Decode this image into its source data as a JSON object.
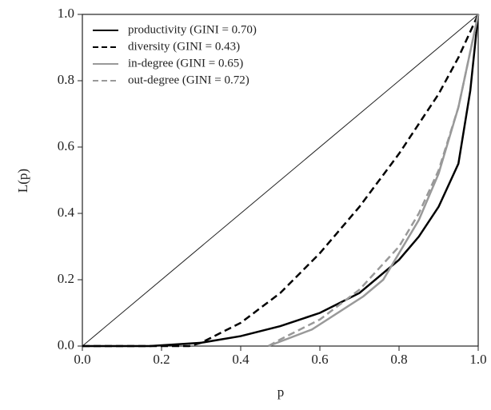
{
  "chart_data": {
    "type": "line",
    "xlabel": "p",
    "ylabel": "L(p)",
    "xlim": [
      0,
      1
    ],
    "ylim": [
      0,
      1
    ],
    "xticks": [
      {
        "value": 0,
        "label": "0.0"
      },
      0.2,
      0.4,
      0.6,
      0.8,
      {
        "value": 1,
        "label": "1.0"
      }
    ],
    "yticks": [
      {
        "value": 0,
        "label": "0.0"
      },
      0.2,
      0.4,
      0.6,
      0.8,
      {
        "value": 1,
        "label": "1.0"
      }
    ],
    "equality_line": true,
    "legend": "upper-left",
    "series": [
      {
        "name": "productivity (GINI = 0.70)",
        "color": "#000000",
        "linestyle": "solid",
        "x": [
          0,
          0.17,
          0.3,
          0.4,
          0.5,
          0.6,
          0.7,
          0.8,
          0.85,
          0.9,
          0.95,
          0.98,
          1.0
        ],
        "values": [
          0,
          0,
          0.01,
          0.03,
          0.06,
          0.1,
          0.16,
          0.26,
          0.33,
          0.42,
          0.55,
          0.77,
          1.0
        ]
      },
      {
        "name": "diversity (GINI = 0.43)",
        "color": "#000000",
        "linestyle": "dashed",
        "x": [
          0,
          0.27,
          0.3,
          0.4,
          0.5,
          0.6,
          0.7,
          0.8,
          0.9,
          0.95,
          1.0
        ],
        "values": [
          0,
          0,
          0.01,
          0.07,
          0.16,
          0.28,
          0.42,
          0.58,
          0.76,
          0.87,
          1.0
        ]
      },
      {
        "name": "in-degree (GINI = 0.65)",
        "color": "#999999",
        "linestyle": "solid",
        "x": [
          0.47,
          0.58,
          0.71,
          0.76,
          0.8,
          0.85,
          0.9,
          0.95,
          1.0
        ],
        "values": [
          0,
          0.05,
          0.15,
          0.2,
          0.28,
          0.38,
          0.52,
          0.72,
          1.0
        ]
      },
      {
        "name": "out-degree (GINI = 0.72)",
        "color": "#999999",
        "linestyle": "dashed",
        "x": [
          0.47,
          0.5,
          0.6,
          0.7,
          0.8,
          0.85,
          0.9,
          0.95,
          1.0
        ],
        "values": [
          0,
          0.02,
          0.08,
          0.17,
          0.3,
          0.4,
          0.53,
          0.72,
          1.0
        ]
      }
    ]
  }
}
